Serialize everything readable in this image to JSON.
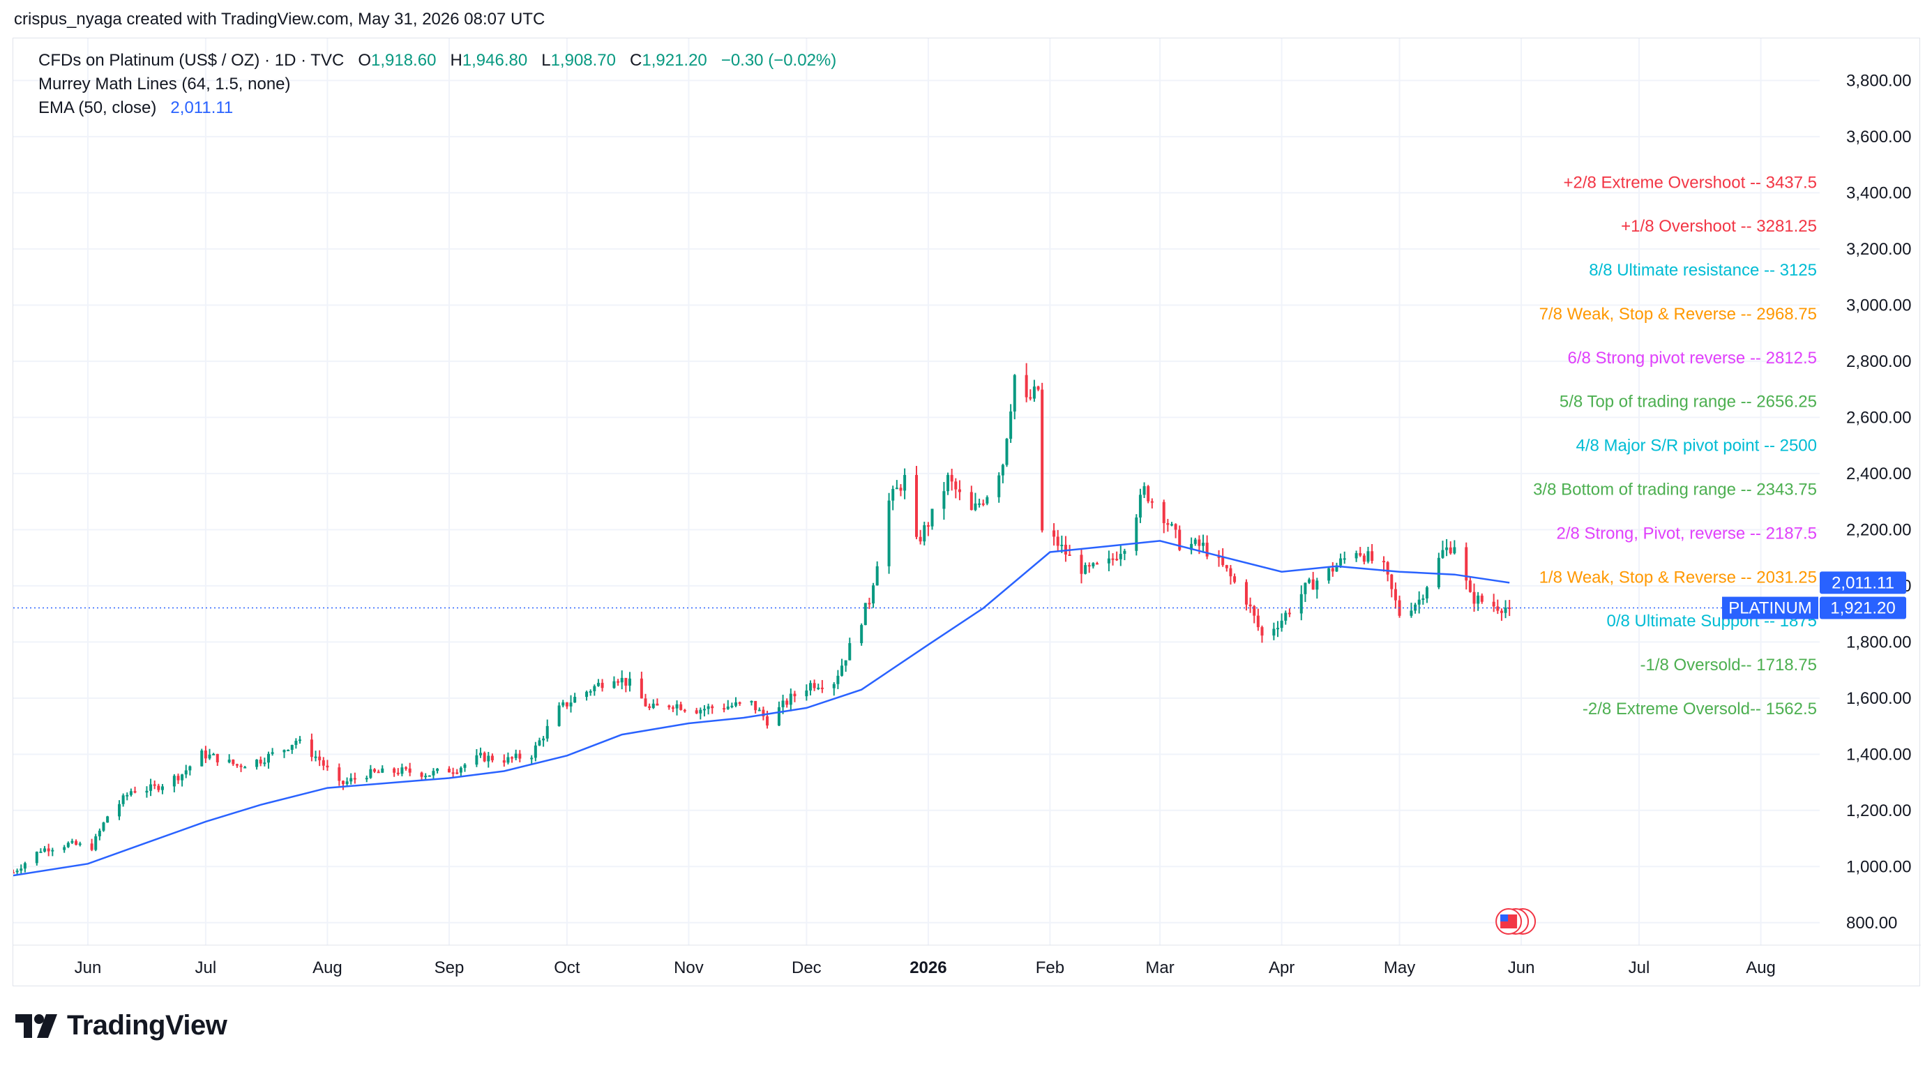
{
  "header": {
    "attribution": "crispus_nyaga created with TradingView.com, May 31, 2026 08:07 UTC"
  },
  "legend": {
    "symbol": "CFDs on Platinum (US$ / OZ) · 1D · TVC",
    "open_label": "O",
    "open": "1,918.60",
    "high_label": "H",
    "high": "1,946.80",
    "low_label": "L",
    "low": "1,908.70",
    "close_label": "C",
    "close": "1,921.20",
    "change": "−0.30 (−0.02%)",
    "indicator_1": "Murrey Math Lines (64, 1.5, none)",
    "indicator_2": "EMA (50, close)",
    "indicator_2_value": "2,011.11"
  },
  "logo": {
    "text": "TradingView"
  },
  "chart_data": {
    "type": "candlestick",
    "ylim": [
      720,
      3950
    ],
    "y_ticks": [
      800,
      1000,
      1200,
      1400,
      1600,
      1800,
      2000,
      2200,
      2400,
      2600,
      2800,
      3000,
      3200,
      3400,
      3600,
      3800
    ],
    "y_tick_labels": [
      "800.00",
      "1,000.00",
      "1,200.00",
      "1,400.00",
      "1,600.00",
      "1,800.00",
      "2,000.00",
      "2,200.00",
      "2,400.00",
      "2,600.00",
      "2,800.00",
      "3,000.00",
      "3,200.00",
      "3,400.00",
      "3,600.00",
      "3,800.00"
    ],
    "x_range": [
      "2025-05-13",
      "2026-08-16"
    ],
    "x_ticks": [
      {
        "date": "2025-06-01",
        "label": "Jun"
      },
      {
        "date": "2025-07-01",
        "label": "Jul"
      },
      {
        "date": "2025-08-01",
        "label": "Aug"
      },
      {
        "date": "2025-09-01",
        "label": "Sep"
      },
      {
        "date": "2025-10-01",
        "label": "Oct"
      },
      {
        "date": "2025-11-01",
        "label": "Nov"
      },
      {
        "date": "2025-12-01",
        "label": "Dec"
      },
      {
        "date": "2026-01-01",
        "label": "2026"
      },
      {
        "date": "2026-02-01",
        "label": "Feb"
      },
      {
        "date": "2026-03-01",
        "label": "Mar"
      },
      {
        "date": "2026-04-01",
        "label": "Apr"
      },
      {
        "date": "2026-05-01",
        "label": "May"
      },
      {
        "date": "2026-06-01",
        "label": "Jun"
      },
      {
        "date": "2026-07-01",
        "label": "Jul"
      },
      {
        "date": "2026-08-01",
        "label": "Aug"
      }
    ],
    "price_anchors": [
      [
        "2025-05-13",
        980
      ],
      [
        "2025-05-20",
        1060
      ],
      [
        "2025-05-27",
        1080
      ],
      [
        "2025-06-02",
        1070
      ],
      [
        "2025-06-06",
        1180
      ],
      [
        "2025-06-12",
        1270
      ],
      [
        "2025-06-18",
        1280
      ],
      [
        "2025-06-25",
        1330
      ],
      [
        "2025-06-30",
        1400
      ],
      [
        "2025-07-03",
        1390
      ],
      [
        "2025-07-09",
        1360
      ],
      [
        "2025-07-15",
        1380
      ],
      [
        "2025-07-21",
        1420
      ],
      [
        "2025-07-24",
        1450
      ],
      [
        "2025-07-30",
        1380
      ],
      [
        "2025-08-04",
        1290
      ],
      [
        "2025-08-11",
        1330
      ],
      [
        "2025-08-20",
        1340
      ],
      [
        "2025-08-27",
        1330
      ],
      [
        "2025-09-03",
        1350
      ],
      [
        "2025-09-09",
        1390
      ],
      [
        "2025-09-16",
        1380
      ],
      [
        "2025-09-22",
        1400
      ],
      [
        "2025-09-29",
        1560
      ],
      [
        "2025-10-03",
        1600
      ],
      [
        "2025-10-08",
        1640
      ],
      [
        "2025-10-13",
        1680
      ],
      [
        "2025-10-17",
        1650
      ],
      [
        "2025-10-22",
        1560
      ],
      [
        "2025-10-28",
        1580
      ],
      [
        "2025-11-03",
        1560
      ],
      [
        "2025-11-10",
        1570
      ],
      [
        "2025-11-17",
        1580
      ],
      [
        "2025-11-21",
        1520
      ],
      [
        "2025-11-27",
        1600
      ],
      [
        "2025-12-02",
        1650
      ],
      [
        "2025-12-08",
        1660
      ],
      [
        "2025-12-12",
        1780
      ],
      [
        "2025-12-17",
        1950
      ],
      [
        "2025-12-22",
        2300
      ],
      [
        "2025-12-26",
        2380
      ],
      [
        "2025-12-29",
        2150
      ],
      [
        "2026-01-02",
        2250
      ],
      [
        "2026-01-06",
        2380
      ],
      [
        "2026-01-12",
        2260
      ],
      [
        "2026-01-16",
        2330
      ],
      [
        "2026-01-20",
        2440
      ],
      [
        "2026-01-23",
        2750
      ],
      [
        "2026-01-26",
        2650
      ],
      [
        "2026-01-29",
        2700
      ],
      [
        "2026-01-30",
        2190
      ],
      [
        "2026-02-03",
        2150
      ],
      [
        "2026-02-06",
        2100
      ],
      [
        "2026-02-10",
        2050
      ],
      [
        "2026-02-16",
        2080
      ],
      [
        "2026-02-20",
        2150
      ],
      [
        "2026-02-25",
        2340
      ],
      [
        "2026-03-02",
        2250
      ],
      [
        "2026-03-06",
        2150
      ],
      [
        "2026-03-12",
        2140
      ],
      [
        "2026-03-18",
        2050
      ],
      [
        "2026-03-23",
        1950
      ],
      [
        "2026-03-27",
        1820
      ],
      [
        "2026-04-01",
        1880
      ],
      [
        "2026-04-07",
        1990
      ],
      [
        "2026-04-13",
        2050
      ],
      [
        "2026-04-20",
        2130
      ],
      [
        "2026-04-27",
        2060
      ],
      [
        "2026-05-01",
        1900
      ],
      [
        "2026-05-06",
        1950
      ],
      [
        "2026-05-12",
        2120
      ],
      [
        "2026-05-15",
        2150
      ],
      [
        "2026-05-19",
        1960
      ],
      [
        "2026-05-25",
        1930
      ],
      [
        "2026-05-29",
        1921.2
      ]
    ],
    "ema_anchors": [
      [
        "2025-05-13",
        968
      ],
      [
        "2025-06-01",
        1010
      ],
      [
        "2025-06-15",
        1080
      ],
      [
        "2025-07-01",
        1160
      ],
      [
        "2025-07-15",
        1220
      ],
      [
        "2025-08-01",
        1280
      ],
      [
        "2025-08-15",
        1296
      ],
      [
        "2025-09-01",
        1315
      ],
      [
        "2025-09-15",
        1340
      ],
      [
        "2025-10-01",
        1395
      ],
      [
        "2025-10-15",
        1470
      ],
      [
        "2025-11-01",
        1510
      ],
      [
        "2025-11-15",
        1530
      ],
      [
        "2025-12-01",
        1565
      ],
      [
        "2025-12-15",
        1630
      ],
      [
        "2026-01-01",
        1790
      ],
      [
        "2026-01-15",
        1920
      ],
      [
        "2026-02-01",
        2120
      ],
      [
        "2026-02-15",
        2140
      ],
      [
        "2026-03-01",
        2160
      ],
      [
        "2026-03-15",
        2110
      ],
      [
        "2026-04-01",
        2050
      ],
      [
        "2026-04-15",
        2070
      ],
      [
        "2026-05-01",
        2050
      ],
      [
        "2026-05-15",
        2040
      ],
      [
        "2026-05-29",
        2011.11
      ]
    ],
    "murrey_lines": [
      {
        "label": "+2/8 Extreme Overshoot --  3437.5",
        "value": 3437.5,
        "color": "#f23645"
      },
      {
        "label": "+1/8 Overshoot --  3281.25",
        "value": 3281.25,
        "color": "#f23645"
      },
      {
        "label": "8/8 Ultimate resistance --  3125",
        "value": 3125,
        "color": "#00bcd4"
      },
      {
        "label": "7/8 Weak, Stop & Reverse --  2968.75",
        "value": 2968.75,
        "color": "#ff9800"
      },
      {
        "label": "6/8 Strong pivot reverse --  2812.5",
        "value": 2812.5,
        "color": "#e040fb"
      },
      {
        "label": "5/8 Top of trading range --  2656.25",
        "value": 2656.25,
        "color": "#4caf50"
      },
      {
        "label": "4/8 Major S/R pivot point --  2500",
        "value": 2500,
        "color": "#00bcd4"
      },
      {
        "label": "3/8 Bottom of trading range --  2343.75",
        "value": 2343.75,
        "color": "#4caf50"
      },
      {
        "label": "2/8 Strong, Pivot, reverse --  2187.5",
        "value": 2187.5,
        "color": "#e040fb"
      },
      {
        "label": "1/8 Weak, Stop & Reverse --  2031.25",
        "value": 2031.25,
        "color": "#ff9800"
      },
      {
        "label": "0/8 Ultimate Support --  1875",
        "value": 1875,
        "color": "#00bcd4"
      },
      {
        "label": "-1/8 Oversold--  1718.75",
        "value": 1718.75,
        "color": "#4caf50"
      },
      {
        "label": "-2/8 Extreme Oversold--  1562.5",
        "value": 1562.5,
        "color": "#4caf50"
      }
    ],
    "last_price": 1921.2,
    "price_tags": [
      {
        "label": "",
        "value_text": "2,011.11",
        "value": 2011.11,
        "color": "#2962ff"
      },
      {
        "label": "PLATINUM",
        "value_text": "1,921.20",
        "value": 1921.2,
        "color": "#2962ff"
      }
    ],
    "colors": {
      "up": "#089981",
      "down": "#f23645",
      "ema": "#2962ff",
      "grid": "#f0f3fa",
      "axis_text": "#131722"
    }
  }
}
